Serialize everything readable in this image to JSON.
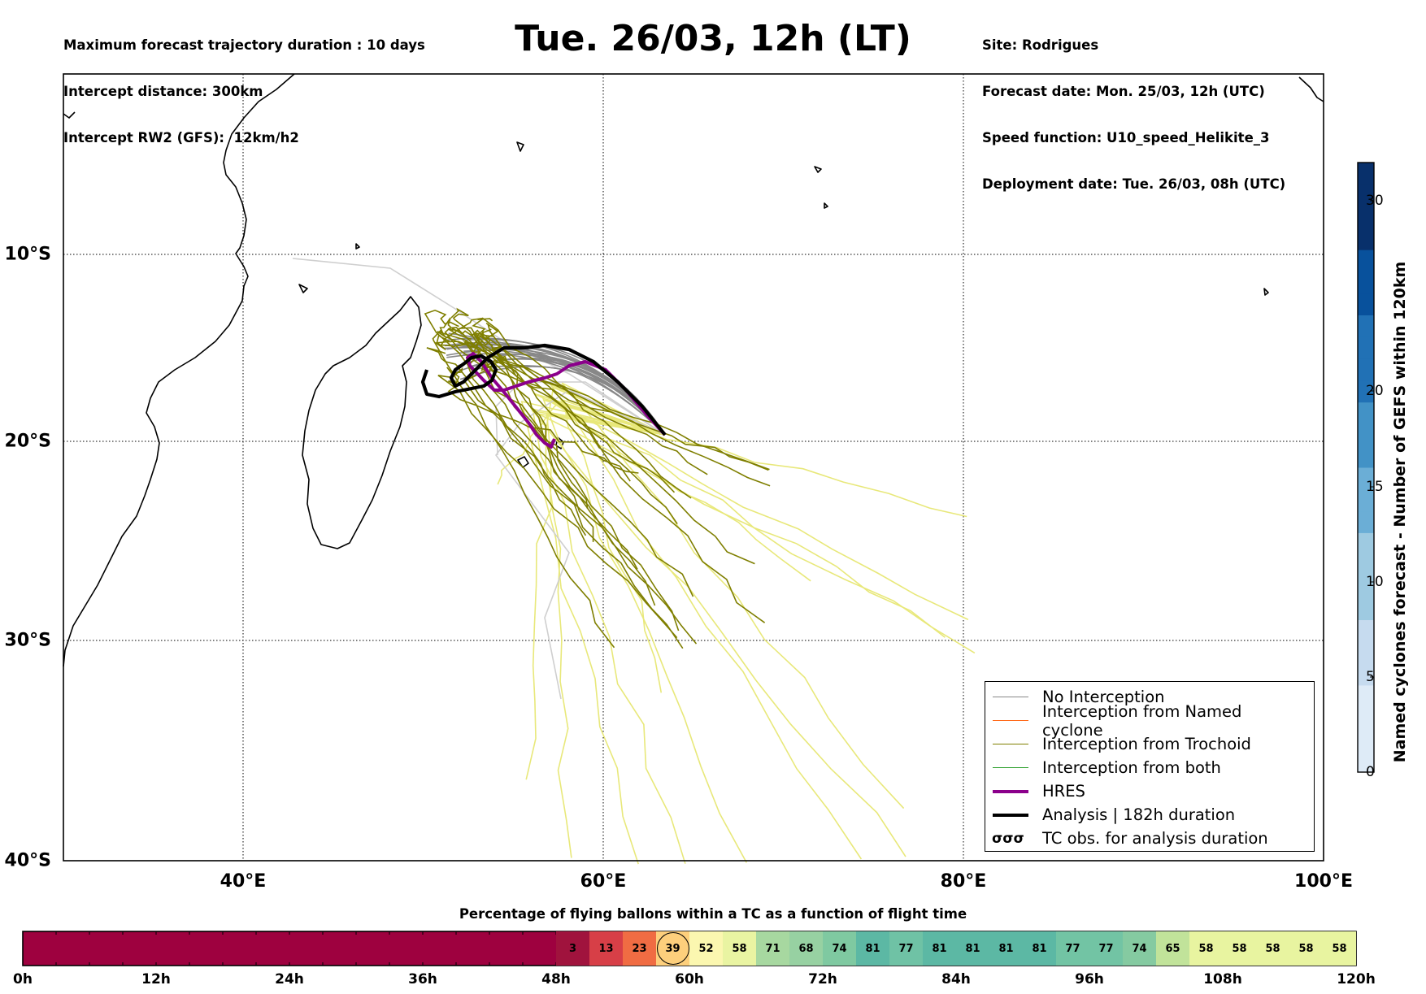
{
  "header": {
    "left_lines": [
      "Maximum forecast trajectory duration : 10 days",
      "Intercept distance: 300km",
      "Intercept RW2 (GFS):  12km/h2"
    ],
    "title": "Tue. 26/03, 12h (LT)",
    "right_lines": [
      "Site: Rodrigues",
      "Forecast date: Mon. 25/03, 12h (UTC)",
      "Speed function: U10_speed_Helikite_3",
      "Deployment date: Tue. 26/03, 08h (UTC)"
    ]
  },
  "map": {
    "lon_labels": [
      "40°E",
      "60°E",
      "80°E",
      "100°E"
    ],
    "lat_labels": [
      "10°S",
      "20°S",
      "30°S",
      "40°S"
    ],
    "colors": {
      "no_interception": "#888888",
      "named_cyclone": "#ff6a1a",
      "trochoid": "#7f7f00",
      "both": "#2ca02c",
      "hres": "#8b008b",
      "analysis": "#000000",
      "ensemble_light": "#e8e87a",
      "ensemble_gray_light": "#cfcfcf"
    }
  },
  "legend": {
    "items": [
      {
        "label": "No Interception",
        "color": "#888888",
        "style": "thin"
      },
      {
        "label": "Interception from Named cyclone",
        "color": "#ff6a1a",
        "style": "thin"
      },
      {
        "label": "Interception from Trochoid",
        "color": "#7f7f00",
        "style": "thin"
      },
      {
        "label": "Interception from both",
        "color": "#2ca02c",
        "style": "thin"
      },
      {
        "label": "HRES",
        "color": "#8b008b",
        "style": "thick"
      },
      {
        "label": "Analysis | 182h duration",
        "color": "#000000",
        "style": "thick"
      },
      {
        "label": "TC obs. for analysis duration",
        "color": "#000000",
        "style": "symbol"
      }
    ]
  },
  "colorbar": {
    "label": "Named cyclones forecast - Number of GEFS within 120km",
    "ticks": [
      "0",
      "5",
      "10",
      "15",
      "20",
      "30"
    ],
    "colors": [
      "#deebf7",
      "#c6dbef",
      "#9ecae1",
      "#6baed6",
      "#4292c6",
      "#2171b5",
      "#08519c",
      "#08306b"
    ]
  },
  "timebar": {
    "title": "Percentage of flying ballons within a TC as a function of flight time",
    "tick_labels": [
      "0h",
      "12h",
      "24h",
      "36h",
      "48h",
      "60h",
      "72h",
      "84h",
      "96h",
      "108h",
      "120h"
    ],
    "values": [
      "3",
      "13",
      "23",
      "39",
      "52",
      "58",
      "71",
      "68",
      "74",
      "81",
      "77",
      "81",
      "81",
      "81",
      "81",
      "77",
      "77",
      "74",
      "65",
      "58",
      "58",
      "58",
      "58",
      "58"
    ],
    "highlight": "39",
    "cell_colors": [
      "#a0133d",
      "#d73f47",
      "#f06c43",
      "#fdcf7c",
      "#fbf7b0",
      "#e9f4a2",
      "#a7d8a0",
      "#97d1a2",
      "#7fc9a1",
      "#5cb8a4",
      "#6fc2a5",
      "#5cb8a4",
      "#5cb8a4",
      "#5cb8a4",
      "#5cb8a4",
      "#72c4a4",
      "#72c4a4",
      "#85caa1",
      "#c1e39a",
      "#e8f4a0",
      "#e8f4a0",
      "#e8f4a0",
      "#e8f4a0",
      "#e8f4a0"
    ],
    "base_color": "#9e013f"
  }
}
